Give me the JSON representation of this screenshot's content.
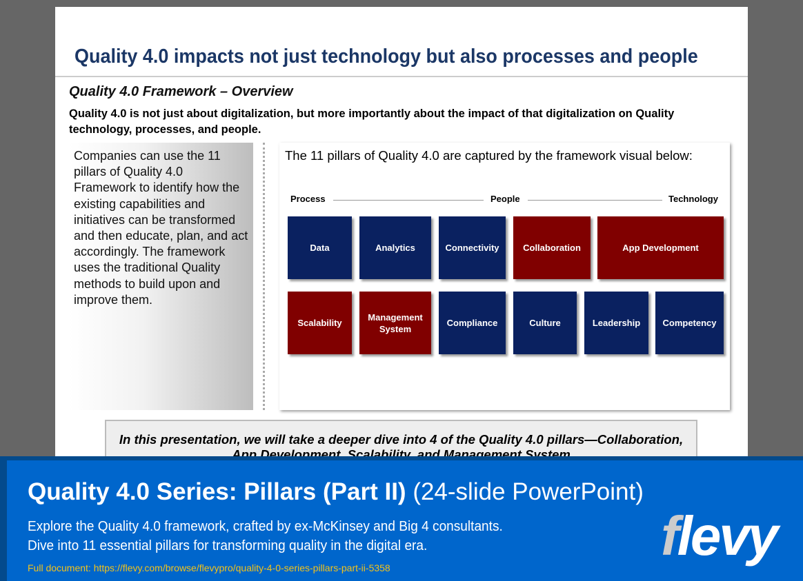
{
  "slide": {
    "title": "Quality 4.0 impacts not just technology but also processes and people",
    "subtitle": "Quality 4.0 Framework – Overview",
    "lead": "Quality 4.0 is not just about digitalization, but more importantly about the impact of that digitalization on Quality technology, processes, and people.",
    "left_text": "Companies can use the 11 pillars of Quality 4.0 Framework to identify how the existing capabilities and initiatives can be transformed and then educate, plan, and act accordingly.  The framework uses the traditional Quality methods to build upon and improve them.",
    "panel_heading": "The 11 pillars of Quality 4.0 are captured by the framework visual below:",
    "axis_labels": {
      "process": "Process",
      "people": "People",
      "technology": "Technology"
    },
    "pillars_row1": [
      {
        "label": "Data",
        "color": "#0a2160"
      },
      {
        "label": "Analytics",
        "color": "#0a2160"
      },
      {
        "label": "Connectivity",
        "color": "#0a2160"
      },
      {
        "label": "Collaboration",
        "color": "#800000"
      },
      {
        "label": "App Development",
        "color": "#800000"
      }
    ],
    "pillars_row2": [
      {
        "label": "Scalability",
        "color": "#800000"
      },
      {
        "label": "Management System",
        "color": "#800000"
      },
      {
        "label": "Compliance",
        "color": "#0a2160"
      },
      {
        "label": "Culture",
        "color": "#0a2160"
      },
      {
        "label": "Leadership",
        "color": "#0a2160"
      },
      {
        "label": "Competency",
        "color": "#0a2160"
      }
    ],
    "bottom_note": "In this presentation, we will take a deeper dive into 4 of the Quality 4.0 pillars—Collaboration, App Development, Scalability, and Management System"
  },
  "banner": {
    "title_bold": "Quality 4.0 Series: Pillars (Part II)",
    "title_light": "(24-slide PowerPoint)",
    "description": "Explore the Quality 4.0 framework, crafted by ex-McKinsey and Big 4 consultants. Dive into 11 essential pillars for transforming quality in the digital era.",
    "link": "Full document: https://flevy.com/browse/flevypro/quality-4-0-series-pillars-part-ii-5358",
    "logo": "flevy"
  }
}
